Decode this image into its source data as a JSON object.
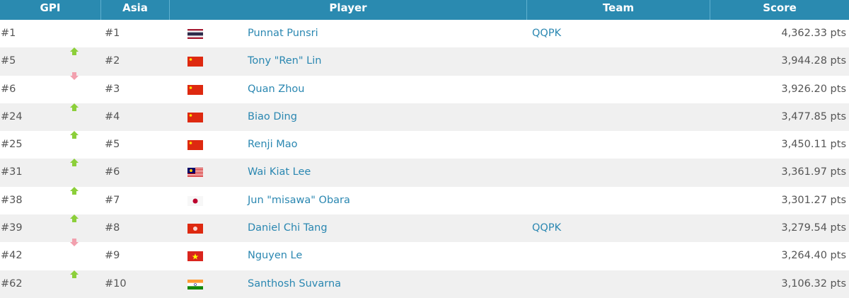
{
  "header": {
    "gpi": "GPI",
    "asia": "Asia",
    "player": "Player",
    "team": "Team",
    "score": "Score"
  },
  "colors": {
    "header_bg": "#2a8ab0",
    "link": "#2a87b1",
    "up": "#8ccf3a",
    "down": "#f2a0ae"
  },
  "rows": [
    {
      "gpi": "#1",
      "trend": "none",
      "asia": "#1",
      "flag": "thailand",
      "player": "Punnat Punsri",
      "team": "QQPK",
      "score": "4,362.33 pts"
    },
    {
      "gpi": "#5",
      "trend": "up",
      "asia": "#2",
      "flag": "china",
      "player": "Tony \"Ren\" Lin",
      "team": "",
      "score": "3,944.28 pts"
    },
    {
      "gpi": "#6",
      "trend": "down",
      "asia": "#3",
      "flag": "china",
      "player": "Quan Zhou",
      "team": "",
      "score": "3,926.20 pts"
    },
    {
      "gpi": "#24",
      "trend": "up",
      "asia": "#4",
      "flag": "china",
      "player": "Biao Ding",
      "team": "",
      "score": "3,477.85 pts"
    },
    {
      "gpi": "#25",
      "trend": "up",
      "asia": "#5",
      "flag": "china",
      "player": "Renji Mao",
      "team": "",
      "score": "3,450.11 pts"
    },
    {
      "gpi": "#31",
      "trend": "up",
      "asia": "#6",
      "flag": "malaysia",
      "player": "Wai Kiat Lee",
      "team": "",
      "score": "3,361.97 pts"
    },
    {
      "gpi": "#38",
      "trend": "up",
      "asia": "#7",
      "flag": "japan",
      "player": "Jun \"misawa\" Obara",
      "team": "",
      "score": "3,301.27 pts"
    },
    {
      "gpi": "#39",
      "trend": "up",
      "asia": "#8",
      "flag": "hong-kong",
      "player": "Daniel Chi Tang",
      "team": "QQPK",
      "score": "3,279.54 pts"
    },
    {
      "gpi": "#42",
      "trend": "down",
      "asia": "#9",
      "flag": "vietnam",
      "player": "Nguyen Le",
      "team": "",
      "score": "3,264.40 pts"
    },
    {
      "gpi": "#62",
      "trend": "up",
      "asia": "#10",
      "flag": "india",
      "player": "Santhosh Suvarna",
      "team": "",
      "score": "3,106.32 pts"
    }
  ]
}
